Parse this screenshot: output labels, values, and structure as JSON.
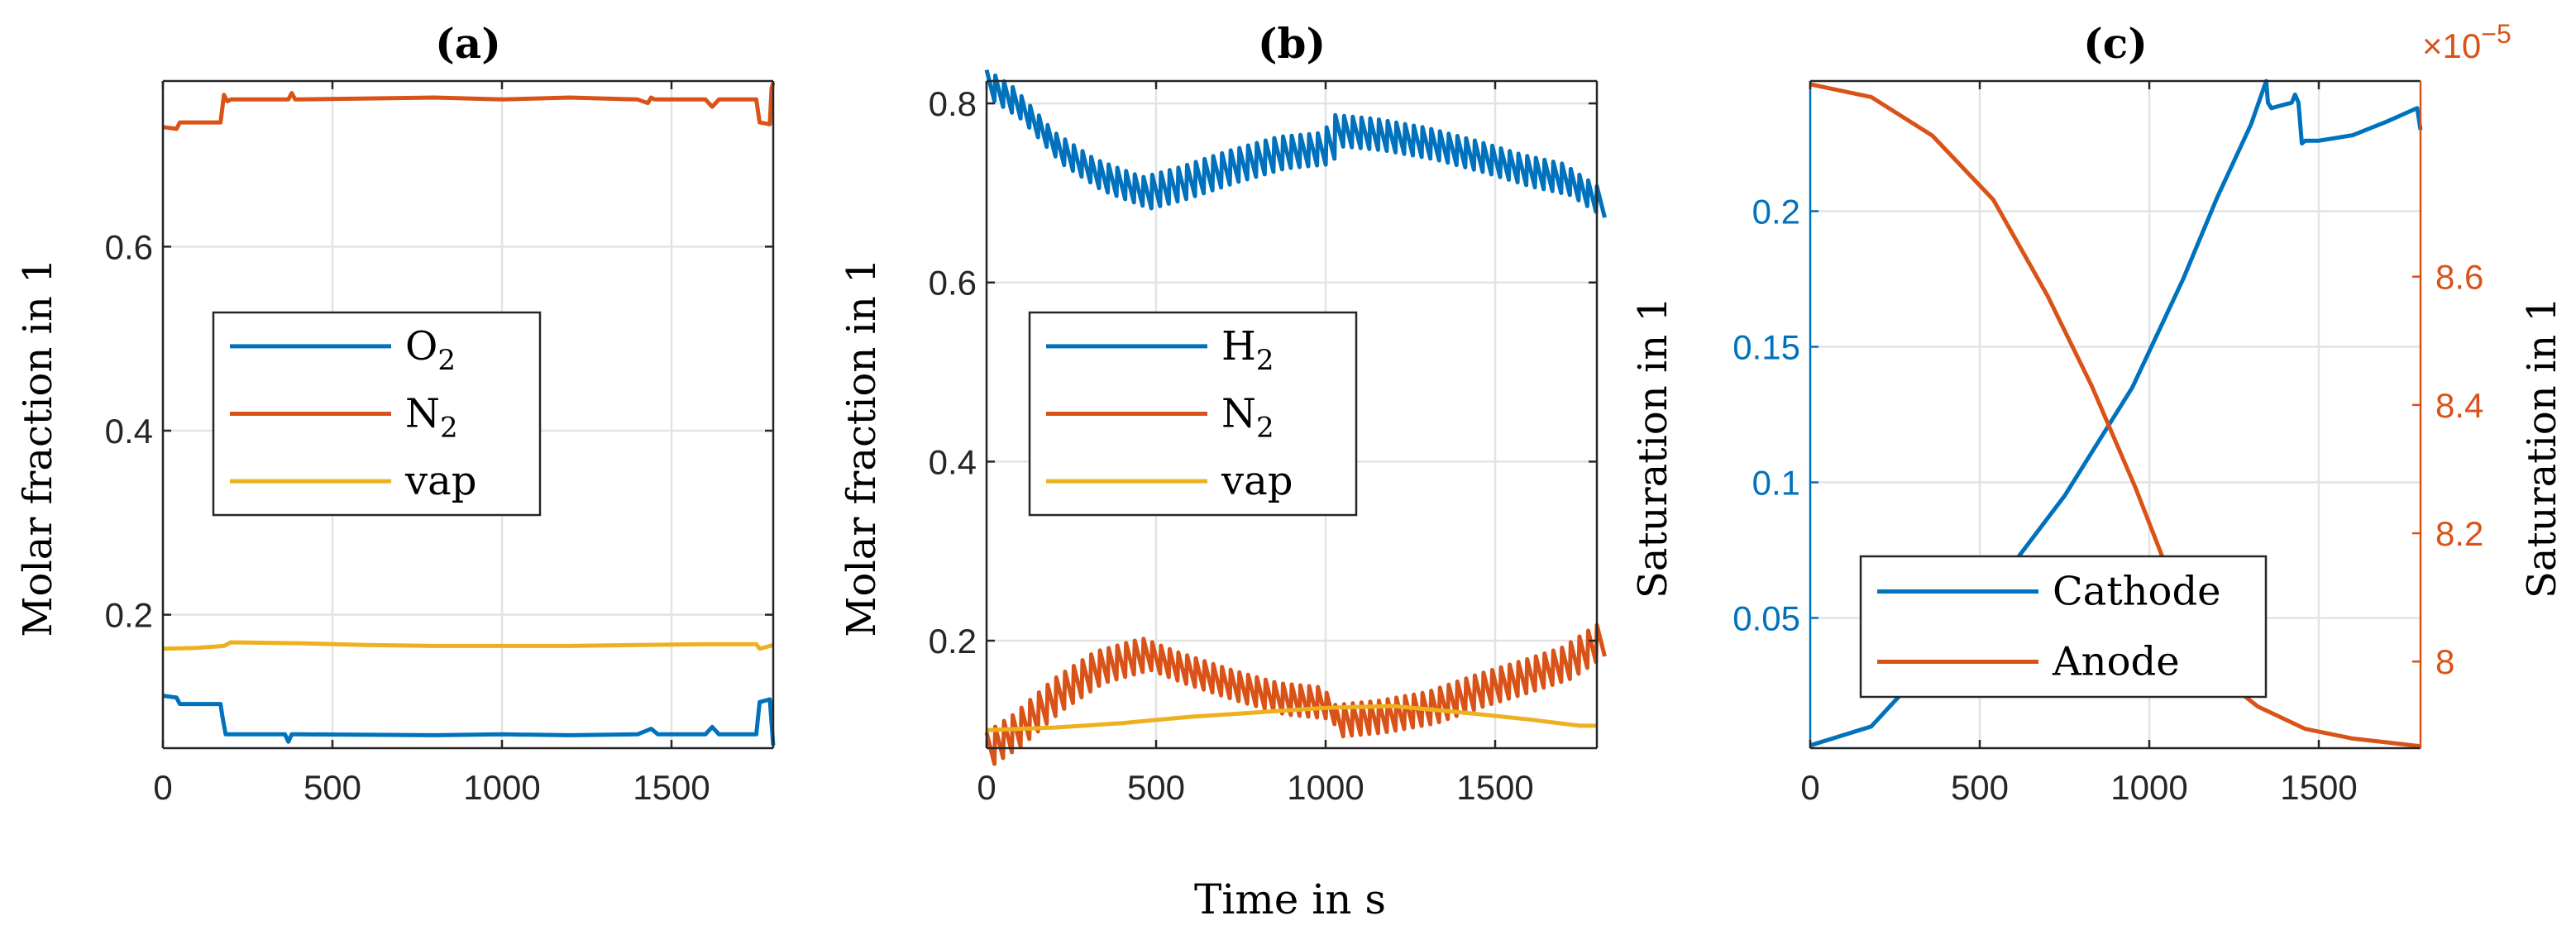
{
  "figure": {
    "xlabel_shared": "Time in s"
  },
  "chart_data": [
    {
      "id": "a",
      "type": "line",
      "title": "(a)",
      "xlabel": "",
      "ylabel": "Molar fraction in 1",
      "xlim": [
        0,
        1800
      ],
      "ylim": [
        0.055,
        0.78
      ],
      "xticks": [
        0,
        500,
        1000,
        1500
      ],
      "xticklabels": [
        "0",
        "500",
        "1000",
        "1500"
      ],
      "yticks": [
        0.2,
        0.4,
        0.6
      ],
      "yticklabels": [
        "0.2",
        "0.4",
        "0.6"
      ],
      "grid": true,
      "legend_position": "center-left",
      "series": [
        {
          "name": "O2",
          "legend_main": "O",
          "legend_sub": "2",
          "color": "#0072BD",
          "x": [
            0,
            40,
            50,
            170,
            175,
            185,
            200,
            360,
            370,
            380,
            400,
            800,
            1000,
            1200,
            1400,
            1440,
            1460,
            1490,
            1600,
            1620,
            1640,
            1750,
            1760,
            1790,
            1800
          ],
          "y": [
            0.112,
            0.11,
            0.103,
            0.103,
            0.09,
            0.07,
            0.07,
            0.07,
            0.062,
            0.07,
            0.07,
            0.069,
            0.07,
            0.069,
            0.07,
            0.076,
            0.07,
            0.07,
            0.07,
            0.078,
            0.07,
            0.07,
            0.105,
            0.108,
            0.058
          ]
        },
        {
          "name": "N2",
          "legend_main": "N",
          "legend_sub": "2",
          "color": "#D95319",
          "x": [
            0,
            40,
            50,
            170,
            180,
            190,
            200,
            370,
            380,
            390,
            400,
            800,
            1000,
            1200,
            1400,
            1430,
            1440,
            1450,
            1600,
            1620,
            1640,
            1750,
            1760,
            1790,
            1795,
            1800
          ],
          "y": [
            0.73,
            0.728,
            0.735,
            0.735,
            0.765,
            0.758,
            0.76,
            0.76,
            0.767,
            0.76,
            0.76,
            0.762,
            0.76,
            0.762,
            0.76,
            0.756,
            0.762,
            0.76,
            0.76,
            0.752,
            0.76,
            0.76,
            0.735,
            0.733,
            0.772,
            0.778
          ]
        },
        {
          "name": "vap",
          "legend_main": "vap",
          "legend_sub": "",
          "color": "#EDB120",
          "x": [
            0,
            100,
            180,
            200,
            400,
            600,
            800,
            1000,
            1200,
            1400,
            1600,
            1750,
            1760,
            1800
          ],
          "y": [
            0.163,
            0.164,
            0.166,
            0.17,
            0.169,
            0.167,
            0.166,
            0.166,
            0.166,
            0.167,
            0.168,
            0.168,
            0.163,
            0.167
          ]
        }
      ]
    },
    {
      "id": "b",
      "type": "line",
      "title": "(b)",
      "xlabel": "",
      "ylabel": "Molar fraction in 1",
      "xlim": [
        0,
        1800
      ],
      "ylim": [
        0.08,
        0.825
      ],
      "xticks": [
        0,
        500,
        1000,
        1500
      ],
      "xticklabels": [
        "0",
        "500",
        "1000",
        "1500"
      ],
      "yticks": [
        0.2,
        0.4,
        0.6,
        0.8
      ],
      "yticklabels": [
        "0.2",
        "0.4",
        "0.6",
        "0.8"
      ],
      "grid": true,
      "legend_position": "center-left",
      "series": [
        {
          "name": "H2",
          "legend_main": "H",
          "legend_sub": "2",
          "color": "#0072BD",
          "sawtooth": true,
          "x": [
            0,
            80,
            200,
            320,
            460,
            560,
            720,
            860,
            1000,
            1010,
            1150,
            1300,
            1450,
            1580,
            1700,
            1800
          ],
          "y": [
            0.82,
            0.8,
            0.75,
            0.72,
            0.7,
            0.71,
            0.73,
            0.745,
            0.75,
            0.77,
            0.765,
            0.755,
            0.74,
            0.725,
            0.715,
            0.69
          ],
          "amp": 0.035
        },
        {
          "name": "N2",
          "legend_main": "N",
          "legend_sub": "2",
          "color": "#D95319",
          "sawtooth": true,
          "x": [
            0,
            80,
            200,
            320,
            460,
            560,
            720,
            860,
            1000,
            1010,
            1150,
            1300,
            1450,
            1580,
            1700,
            1800
          ],
          "y": [
            0.08,
            0.1,
            0.14,
            0.17,
            0.185,
            0.17,
            0.15,
            0.135,
            0.13,
            0.11,
            0.115,
            0.125,
            0.145,
            0.16,
            0.175,
            0.2
          ],
          "amp": 0.035
        },
        {
          "name": "vap",
          "legend_main": "vap",
          "legend_sub": "",
          "color": "#EDB120",
          "x": [
            0,
            200,
            400,
            600,
            800,
            1000,
            1200,
            1400,
            1600,
            1750,
            1800
          ],
          "y": [
            0.1,
            0.103,
            0.108,
            0.115,
            0.12,
            0.125,
            0.127,
            0.12,
            0.112,
            0.105,
            0.105
          ]
        }
      ]
    },
    {
      "id": "c",
      "type": "line",
      "title": "(c)",
      "xlabel": "",
      "ylabel": "Saturation in 1",
      "ylabel_right": "Saturation in 1",
      "exponent_right": "×10",
      "exponent_right_power": "−5",
      "xlim": [
        0,
        1800
      ],
      "ylim": [
        0.002,
        0.248
      ],
      "ylim_right": [
        7.865,
        8.905
      ],
      "xticks": [
        0,
        500,
        1000,
        1500
      ],
      "xticklabels": [
        "0",
        "500",
        "1000",
        "1500"
      ],
      "yticks": [
        0.05,
        0.1,
        0.15,
        0.2
      ],
      "yticklabels": [
        "0.05",
        "0.1",
        "0.15",
        "0.2"
      ],
      "yticks_right": [
        8.0,
        8.2,
        8.4,
        8.6
      ],
      "yticklabels_right": [
        "8",
        "8.2",
        "8.4",
        "8.6"
      ],
      "grid": true,
      "legend_position": "bottom-left",
      "series": [
        {
          "name": "Cathode",
          "axis": "left",
          "color": "#0072BD",
          "x": [
            0,
            180,
            350,
            550,
            750,
            950,
            1100,
            1200,
            1300,
            1345,
            1350,
            1360,
            1420,
            1430,
            1440,
            1450,
            1460,
            1470,
            1500,
            1600,
            1700,
            1790,
            1800
          ],
          "y": [
            0.003,
            0.01,
            0.033,
            0.062,
            0.095,
            0.135,
            0.175,
            0.205,
            0.232,
            0.248,
            0.24,
            0.238,
            0.24,
            0.243,
            0.24,
            0.225,
            0.226,
            0.226,
            0.226,
            0.228,
            0.233,
            0.238,
            0.23
          ]
        },
        {
          "name": "Anode",
          "axis": "right",
          "color": "#D95319",
          "x": [
            0,
            180,
            360,
            540,
            700,
            830,
            960,
            1100,
            1200,
            1320,
            1460,
            1600,
            1800
          ],
          "y": [
            8.9,
            8.88,
            8.82,
            8.72,
            8.57,
            8.43,
            8.27,
            8.08,
            7.98,
            7.93,
            7.895,
            7.88,
            7.868
          ]
        }
      ]
    }
  ]
}
